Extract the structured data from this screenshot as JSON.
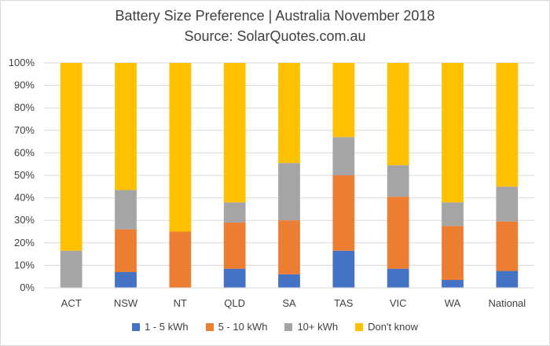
{
  "chart_data": {
    "type": "bar",
    "stacked": true,
    "percent_stacked": true,
    "title": "Battery Size Preference  | Australia November 2018",
    "subtitle": "Source: SolarQuotes.com.au",
    "categories": [
      "ACT",
      "NSW",
      "NT",
      "QLD",
      "SA",
      "TAS",
      "VIC",
      "WA",
      "National"
    ],
    "y_ticks": [
      "0%",
      "10%",
      "20%",
      "30%",
      "40%",
      "50%",
      "60%",
      "70%",
      "80%",
      "90%",
      "100%"
    ],
    "ylim": [
      0,
      100
    ],
    "grid": true,
    "legend_position": "bottom",
    "series": [
      {
        "name": "1 - 5 kWh",
        "color": "#4472c4",
        "values": [
          0,
          7,
          0,
          8.5,
          6,
          16.5,
          8.5,
          3.5,
          7.5
        ]
      },
      {
        "name": "5 - 10 kWh",
        "color": "#ed7d31",
        "values": [
          0,
          19,
          25,
          20.5,
          24,
          33.5,
          32,
          24,
          22
        ]
      },
      {
        "name": "10+ kWh",
        "color": "#a5a5a5",
        "values": [
          16.5,
          17.5,
          0,
          9,
          25.5,
          17,
          14,
          10.5,
          15.5
        ]
      },
      {
        "name": "Don't know",
        "color": "#ffc000",
        "values": [
          83.5,
          56.5,
          75,
          62,
          44.5,
          33,
          45.5,
          62,
          55
        ]
      }
    ]
  }
}
